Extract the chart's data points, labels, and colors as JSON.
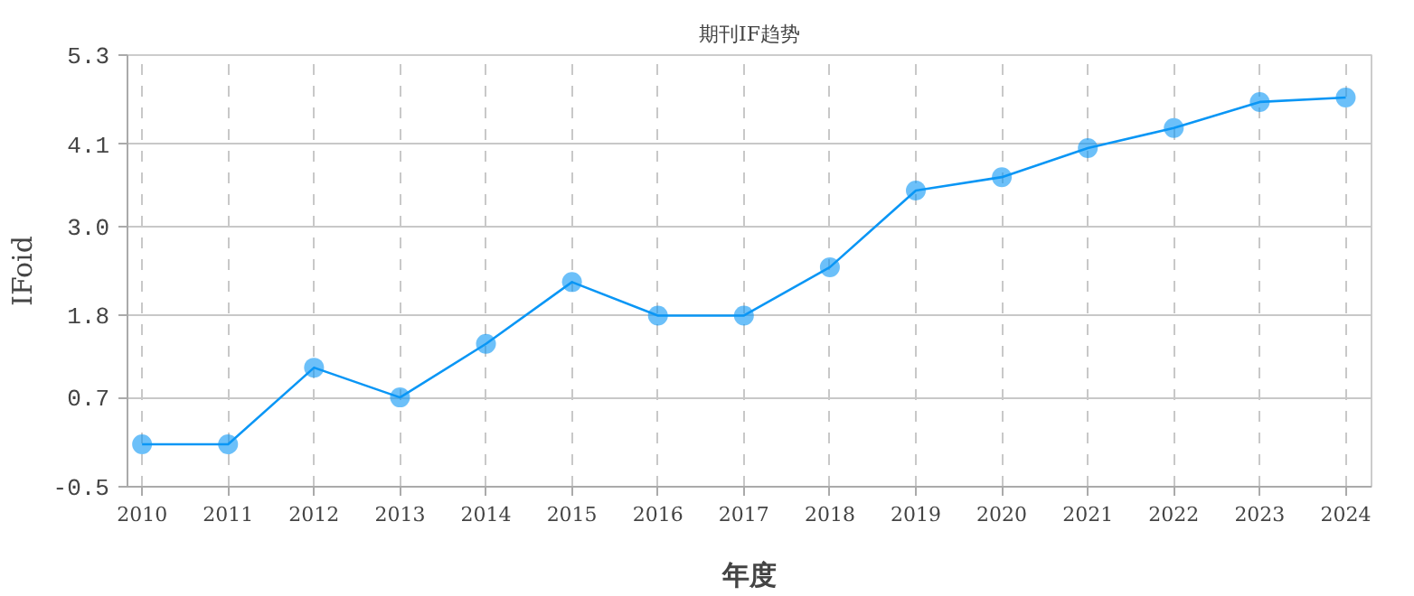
{
  "chart_data": {
    "type": "line",
    "title": "期刊IF趋势",
    "xlabel": "年度",
    "ylabel": "IFoid",
    "categories": [
      "2010",
      "2011",
      "2012",
      "2013",
      "2014",
      "2015",
      "2016",
      "2017",
      "2018",
      "2019",
      "2020",
      "2021",
      "2022",
      "2023",
      "2024"
    ],
    "series": [
      {
        "color": "#0a96f5",
        "values": [
          0.07,
          0.07,
          1.1,
          0.7,
          1.42,
          2.25,
          1.8,
          1.8,
          2.45,
          3.48,
          3.66,
          4.05,
          4.32,
          4.67,
          4.73
        ]
      }
    ],
    "ylim": [
      -0.5,
      5.3
    ],
    "yticks": [
      -0.5,
      0.7,
      1.8,
      {
        "value": 3.0,
        "label": "3.0"
      },
      4.1,
      5.3
    ],
    "grid": true,
    "marker": "circle",
    "line_style": "solid"
  }
}
